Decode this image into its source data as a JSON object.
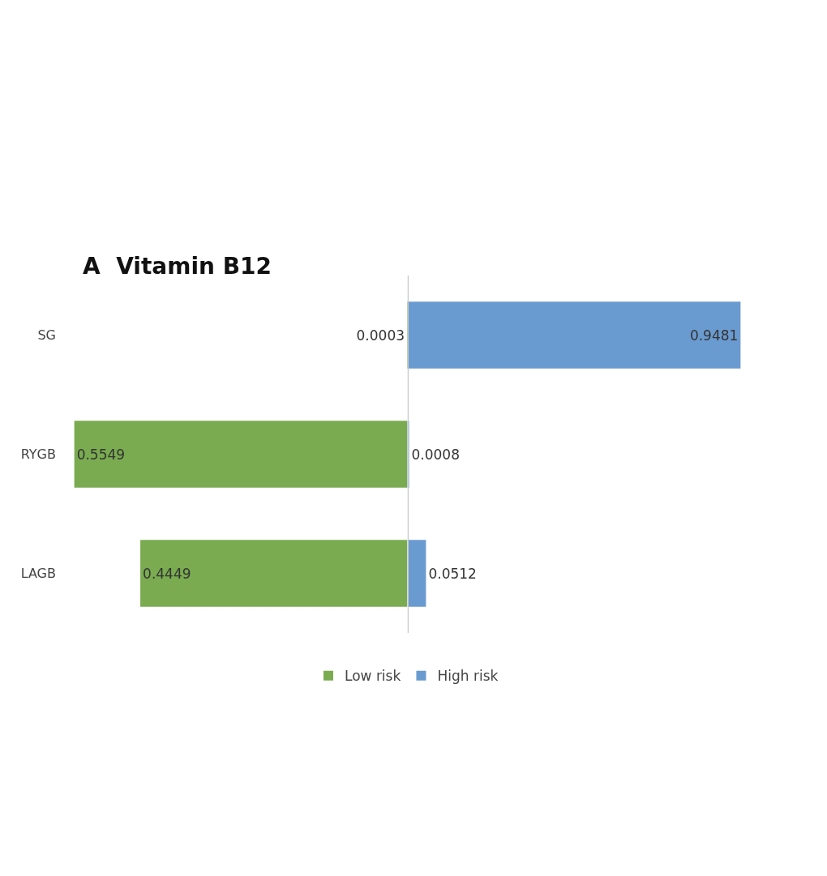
{
  "chart_data": [
    {
      "type": "bar",
      "orientation": "horizontal",
      "title": "A  Vitamin B12",
      "categories": [
        "SG",
        "RYGB",
        "LAGB"
      ],
      "series": [
        {
          "name": "Low risk",
          "color": "#7aab50",
          "values": [
            0.0003,
            0.5549,
            0.4449
          ]
        }
      ],
      "tick_labels": "y",
      "data_labels": true,
      "legend": "bottom"
    },
    {
      "type": "bar",
      "orientation": "horizontal",
      "categories": [
        "SG",
        "RYGB",
        "LAGB"
      ],
      "series": [
        {
          "name": "High risk",
          "color": "#6a9bd0",
          "values": [
            0.9481,
            0.0008,
            0.0512
          ]
        }
      ],
      "tick_labels": false,
      "data_labels": true,
      "legend": "bottom"
    }
  ]
}
